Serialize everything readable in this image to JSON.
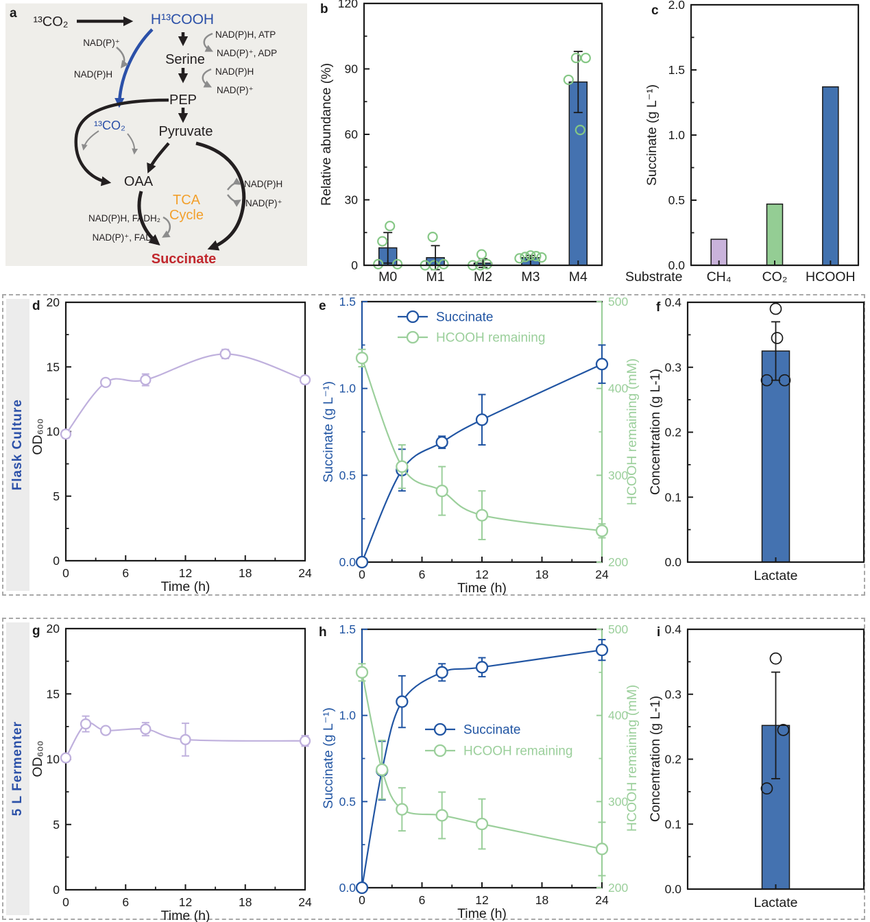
{
  "panels": {
    "a": {
      "letter": "a"
    },
    "b": {
      "letter": "b"
    },
    "c": {
      "letter": "c"
    },
    "d": {
      "letter": "d"
    },
    "e": {
      "letter": "e"
    },
    "f": {
      "letter": "f"
    },
    "g": {
      "letter": "g"
    },
    "h": {
      "letter": "h"
    },
    "i": {
      "letter": "i"
    }
  },
  "rows": {
    "flask": {
      "label": "Flask Culture"
    },
    "fermenter": {
      "label": "5 L  Fermenter"
    }
  },
  "colors": {
    "line_blue": "#2155A3",
    "bar_blue": "#4472B0",
    "line_green": "#9BCF9B",
    "bar_green": "#94CD94",
    "bar_purple": "#C9B3DB",
    "line_lavender": "#BFB0DD",
    "point_green": "#85C785",
    "diagram_blue": "#2B50A8",
    "tca_orange": "#F2A02C",
    "succinate_red": "#C1272D",
    "row_label_blue": "#2B50A8",
    "gray_arrow": "#8C8C8C"
  },
  "panel_a": {
    "labels": [
      {
        "id": "co2-top",
        "text": "¹³CO₂"
      },
      {
        "id": "hcooh",
        "text": "H¹³COOH"
      },
      {
        "id": "nadp-left",
        "text": "NAD(P)⁺"
      },
      {
        "id": "nadph-left",
        "text": "NAD(P)H"
      },
      {
        "id": "nadph-atp",
        "text": "NAD(P)H, ATP"
      },
      {
        "id": "nadp-adp",
        "text": "NAD(P)⁺, ADP"
      },
      {
        "id": "serine",
        "text": "Serine"
      },
      {
        "id": "nadph-r1",
        "text": "NAD(P)H"
      },
      {
        "id": "nadp-r1",
        "text": "NAD(P)⁺"
      },
      {
        "id": "pep",
        "text": "PEP"
      },
      {
        "id": "pyruvate",
        "text": "Pyruvate"
      },
      {
        "id": "co2-blue",
        "text": "¹³CO₂"
      },
      {
        "id": "oaa",
        "text": "OAA"
      },
      {
        "id": "tca-1",
        "text": "TCA"
      },
      {
        "id": "tca-2",
        "text": "Cycle"
      },
      {
        "id": "nadph-r2",
        "text": "NAD(P)H"
      },
      {
        "id": "nadp-r2",
        "text": "NAD(P)⁺"
      },
      {
        "id": "nadph-fadh2",
        "text": "NAD(P)H, FADH₂"
      },
      {
        "id": "nadp-fad",
        "text": "NAD(P)⁺, FAD"
      },
      {
        "id": "succinate",
        "text": "Succinate"
      }
    ]
  },
  "chart_data": [
    {
      "id": "b",
      "type": "bar",
      "ylabel": "Relative abundance (%)",
      "ylim": [
        0,
        120
      ],
      "yticks": [
        0,
        30,
        60,
        90,
        120
      ],
      "ytick_labels": [
        "0",
        "30",
        "60",
        "90",
        "120"
      ],
      "y_minor_step": 15,
      "categories": [
        "M0",
        "M1",
        "M2",
        "M3",
        "M4"
      ],
      "values": [
        8,
        3.5,
        1,
        3.5,
        84
      ],
      "errors": [
        7,
        5.5,
        2,
        1,
        14
      ],
      "bar_color": "#4472B0",
      "point_color": "#85C785",
      "points": [
        [
          0.5,
          0.5,
          11,
          18
        ],
        [
          0,
          0,
          0.5,
          13
        ],
        [
          0,
          0,
          0.5,
          5
        ],
        [
          3.2,
          3.8,
          4.5,
          4.2,
          3.6
        ],
        [
          62,
          85,
          95,
          95
        ]
      ],
      "point_dx": [
        [
          -14,
          14,
          -8,
          3
        ],
        [
          -15,
          -2,
          12,
          -4
        ],
        [
          -15,
          -4,
          6,
          -2
        ],
        [
          -16,
          -8,
          0,
          8,
          16
        ],
        [
          3,
          -14,
          -3,
          11
        ]
      ]
    },
    {
      "id": "c",
      "type": "bar",
      "ylabel": "Succinate (g L⁻¹)",
      "xlabel": "Substrate",
      "ylim": [
        0,
        2
      ],
      "yticks": [
        0,
        0.5,
        1,
        1.5,
        2
      ],
      "ytick_labels": [
        "0.0",
        "0.5",
        "1.0",
        "1.5",
        "2.0"
      ],
      "y_minor_step": 0.25,
      "categories": [
        "CH₄",
        "CO₂",
        "HCOOH"
      ],
      "values": [
        0.2,
        0.47,
        1.37
      ],
      "bar_colors": [
        "#C9B3DB",
        "#94CD94",
        "#4272AF"
      ]
    },
    {
      "id": "d",
      "type": "line",
      "xlabel": "Time (h)",
      "ylabel": "OD₆₀₀",
      "xlim": [
        0,
        24
      ],
      "xticks": [
        0,
        6,
        12,
        18,
        24
      ],
      "x_minor_step": 3,
      "ylim": [
        0,
        20
      ],
      "yticks": [
        0,
        5,
        10,
        15,
        20
      ],
      "ytick_labels": [
        "0",
        "5",
        "10",
        "15",
        "20"
      ],
      "y_minor_step": 2.5,
      "series": [
        {
          "name": "OD600",
          "color": "#BFB0DD",
          "x": [
            0,
            4,
            8,
            16,
            24
          ],
          "y": [
            9.8,
            13.8,
            14.0,
            16.0,
            14.0
          ],
          "yerr": [
            0.3,
            0.2,
            0.45,
            0.35,
            0.2
          ]
        }
      ]
    },
    {
      "id": "e",
      "type": "dual-line",
      "xlabel": "Time (h)",
      "xlim": [
        0,
        24
      ],
      "xticks": [
        0,
        6,
        12,
        18,
        24
      ],
      "x_minor_step": 3,
      "left": {
        "label": "Succinate (g L⁻¹)",
        "color": "#2155A3",
        "lim": [
          0,
          1.5
        ],
        "ticks": [
          0,
          0.5,
          1,
          1.5
        ],
        "tick_labels": [
          "0.0",
          "0.5",
          "1.0",
          "1.5"
        ],
        "minor_step": 0.25
      },
      "right": {
        "label": "HCOOH remaining (mM)",
        "color": "#9BCF9B",
        "lim": [
          200,
          500
        ],
        "ticks": [
          200,
          300,
          400,
          500
        ],
        "tick_labels": [
          "200",
          "300",
          "400",
          "500"
        ],
        "minor_step": 50
      },
      "series": [
        {
          "name": "Succinate",
          "axis": "left",
          "color": "#2155A3",
          "x": [
            0,
            4,
            8,
            12,
            24
          ],
          "y": [
            0,
            0.53,
            0.69,
            0.82,
            1.14
          ],
          "yerr": [
            0.01,
            0.12,
            0.035,
            0.145,
            0.11
          ]
        },
        {
          "name": "HCOOH remaining",
          "axis": "right",
          "color": "#9BCF9B",
          "x": [
            0,
            4,
            8,
            12,
            24
          ],
          "y": [
            435,
            310,
            282,
            254,
            236
          ],
          "yerr": [
            10,
            25,
            28,
            28,
            8
          ]
        }
      ]
    },
    {
      "id": "f",
      "type": "bar",
      "ylabel": "Concentration (g L-1)",
      "ylim": [
        0,
        0.4
      ],
      "yticks": [
        0,
        0.1,
        0.2,
        0.3,
        0.4
      ],
      "ytick_labels": [
        "0.0",
        "0.1",
        "0.2",
        "0.3",
        "0.4"
      ],
      "y_minor_step": 0.05,
      "categories": [
        "Lactate"
      ],
      "values": [
        0.325
      ],
      "errors": [
        0.045
      ],
      "bar_color": "#4472B0",
      "point_color": "#1A1A1A",
      "points": [
        [
          0.39,
          0.345,
          0.28,
          0.28
        ]
      ],
      "point_dx": [
        [
          0,
          2,
          -13,
          13
        ]
      ]
    },
    {
      "id": "g",
      "type": "line",
      "xlabel": "Time (h)",
      "ylabel": "OD₆₀₀",
      "xlim": [
        0,
        24
      ],
      "xticks": [
        0,
        6,
        12,
        18,
        24
      ],
      "x_minor_step": 3,
      "ylim": [
        0,
        20
      ],
      "yticks": [
        0,
        5,
        10,
        15,
        20
      ],
      "ytick_labels": [
        "0",
        "5",
        "10",
        "15",
        "20"
      ],
      "y_minor_step": 2.5,
      "series": [
        {
          "name": "OD600",
          "color": "#BFB0DD",
          "x": [
            0,
            2,
            4,
            8,
            12,
            24
          ],
          "y": [
            10.1,
            12.7,
            12.2,
            12.3,
            11.5,
            11.4
          ],
          "yerr": [
            0.25,
            0.6,
            0.25,
            0.5,
            1.25,
            0.4
          ]
        }
      ]
    },
    {
      "id": "h",
      "type": "dual-line",
      "xlabel": "Time (h)",
      "xlim": [
        0,
        24
      ],
      "xticks": [
        0,
        6,
        12,
        18,
        24
      ],
      "x_minor_step": 3,
      "left": {
        "label": "Succinate (g L⁻¹)",
        "color": "#2155A3",
        "lim": [
          0,
          1.5
        ],
        "ticks": [
          0,
          0.5,
          1,
          1.5
        ],
        "tick_labels": [
          "0.0",
          "0.5",
          "1.0",
          "1.5"
        ],
        "minor_step": 0.25
      },
      "right": {
        "label": "HCOOH remaining (mM)",
        "color": "#9BCF9B",
        "lim": [
          200,
          500
        ],
        "ticks": [
          200,
          300,
          400,
          500
        ],
        "tick_labels": [
          "200",
          "300",
          "400",
          "500"
        ],
        "minor_step": 50
      },
      "series": [
        {
          "name": "Succinate",
          "axis": "left",
          "color": "#2155A3",
          "x": [
            0,
            2,
            4,
            8,
            12,
            24
          ],
          "y": [
            0,
            0.68,
            1.08,
            1.25,
            1.28,
            1.38
          ],
          "yerr": [
            0.01,
            0.17,
            0.15,
            0.05,
            0.055,
            0.06
          ]
        },
        {
          "name": "HCOOH remaining",
          "axis": "right",
          "color": "#9BCF9B",
          "x": [
            0,
            2,
            4,
            8,
            12,
            24
          ],
          "y": [
            450,
            337,
            291,
            284,
            274,
            245
          ],
          "yerr": [
            10,
            34,
            25,
            27,
            29,
            31
          ]
        }
      ]
    },
    {
      "id": "i",
      "type": "bar",
      "ylabel": "Concentration (g L-1)",
      "ylim": [
        0,
        0.4
      ],
      "yticks": [
        0,
        0.1,
        0.2,
        0.3,
        0.4
      ],
      "ytick_labels": [
        "0.0",
        "0.1",
        "0.2",
        "0.3",
        "0.4"
      ],
      "y_minor_step": 0.05,
      "categories": [
        "Lactate"
      ],
      "values": [
        0.252
      ],
      "errors": [
        0.082
      ],
      "bar_color": "#4472B0",
      "point_color": "#1A1A1A",
      "points": [
        [
          0.355,
          0.245,
          0.155
        ]
      ],
      "point_dx": [
        [
          0,
          11,
          -13
        ]
      ]
    }
  ]
}
